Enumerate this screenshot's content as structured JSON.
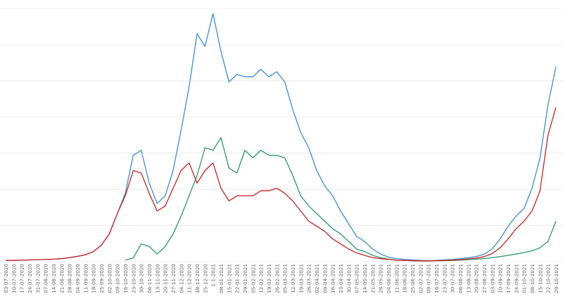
{
  "chart_data": {
    "type": "line",
    "grid": "horizontal",
    "legend": "none",
    "x_tick_labels": [
      "03-07-2020",
      "10-07-2020",
      "17-07-2020",
      "24-07-2020",
      "31-07-2020",
      "07-08-2020",
      "14-08-2020",
      "21-08-2020",
      "28-08-2020",
      "04-09-2020",
      "11-09-2020",
      "18-09-2020",
      "25-09-2020",
      "02-10-2020",
      "09-10-2020",
      "16-10-2020",
      "23-10-2020",
      "30-10-2020",
      "06-11-2020",
      "13-11-2020",
      "20-11-2020",
      "27-11-2020",
      "04-12-2020",
      "11-12-2020",
      "18-12-2020",
      "25-12-2020",
      "1-1-2021",
      "08-01-2021",
      "15-01-2021",
      "22-01-2021",
      "29-01-2021",
      "05-02-2021",
      "12-02-2021",
      "19-02-2021",
      "26-02-2021",
      "05-03-2021",
      "12-03-2021",
      "19-03-2021",
      "26-03-2021",
      "02-04-2021",
      "09-04-2021",
      "16-04-2021",
      "23-04-2021",
      "30-04-2021",
      "07-05-2021",
      "14-05-2021",
      "21-05-2021",
      "28-05-2021",
      "04-06-2021",
      "11-06-2021",
      "18-06-2021",
      "25-06-2021",
      "02-07-2021",
      "09-07-2021",
      "16-07-2021",
      "23-07-2021",
      "30-07-2021",
      "06-08-2021",
      "13-08-2021",
      "20-08-2021",
      "27-08-2021",
      "03-09-2021",
      "10-09-2021",
      "17-09-2021",
      "24-09-2021",
      "01-10-2021",
      "08-10-2021",
      "15-10-2021",
      "22-10-2021",
      "29-10-2021"
    ],
    "y_range": [
      0,
      100
    ],
    "series": [
      {
        "color": "#3b8ed8",
        "values": [
          0.5,
          0.5,
          0.6,
          0.7,
          0.8,
          0.9,
          1.0,
          1.2,
          1.6,
          2.1,
          2.7,
          4.0,
          6.5,
          11,
          19,
          27,
          42,
          44,
          31,
          23,
          26,
          36,
          52,
          69,
          90,
          85,
          98,
          83,
          71,
          74,
          73,
          73,
          76,
          73,
          75,
          71,
          60,
          51,
          45,
          36,
          30,
          26,
          20,
          15,
          10,
          8,
          5,
          3,
          1.8,
          1.2,
          0.9,
          0.7,
          0.5,
          0.4,
          0.5,
          0.7,
          0.9,
          1.2,
          1.6,
          2.0,
          3.0,
          5.0,
          9,
          14,
          18,
          21,
          29,
          41,
          62,
          77
        ]
      },
      {
        "color": "#2a9a6a",
        "values": [
          null,
          null,
          null,
          null,
          null,
          null,
          null,
          null,
          null,
          null,
          null,
          null,
          null,
          null,
          null,
          0.6,
          1.5,
          7,
          6,
          3,
          6,
          11,
          18,
          26,
          34,
          45,
          44,
          49,
          37,
          35,
          44,
          41,
          44,
          42,
          42,
          41,
          34,
          26,
          22,
          19,
          16,
          13,
          11,
          8,
          5,
          4,
          2.5,
          1.6,
          1.0,
          0.6,
          0.5,
          0.4,
          0.3,
          0.3,
          0.4,
          0.4,
          0.5,
          0.6,
          0.8,
          1.0,
          1.2,
          1.6,
          2.0,
          2.5,
          3.0,
          3.6,
          4.3,
          5.5,
          8,
          16
        ]
      },
      {
        "color": "#cc2222",
        "values": [
          0.5,
          0.5,
          0.6,
          0.7,
          0.8,
          0.9,
          1.0,
          1.2,
          1.6,
          2.1,
          2.7,
          4.0,
          6.5,
          11,
          19,
          26,
          36,
          35,
          27,
          20,
          22,
          29,
          36,
          39,
          31,
          36,
          39,
          29,
          24,
          26,
          26,
          26,
          28,
          28,
          29,
          27,
          24,
          20,
          16,
          14,
          12,
          9,
          7,
          5,
          3.5,
          2.5,
          1.6,
          1.2,
          0.9,
          0.6,
          0.5,
          0.4,
          0.3,
          0.3,
          0.4,
          0.5,
          0.6,
          0.8,
          1.1,
          1.4,
          2.0,
          3.2,
          5.5,
          9,
          13,
          16,
          20,
          28,
          50,
          61
        ]
      }
    ]
  }
}
